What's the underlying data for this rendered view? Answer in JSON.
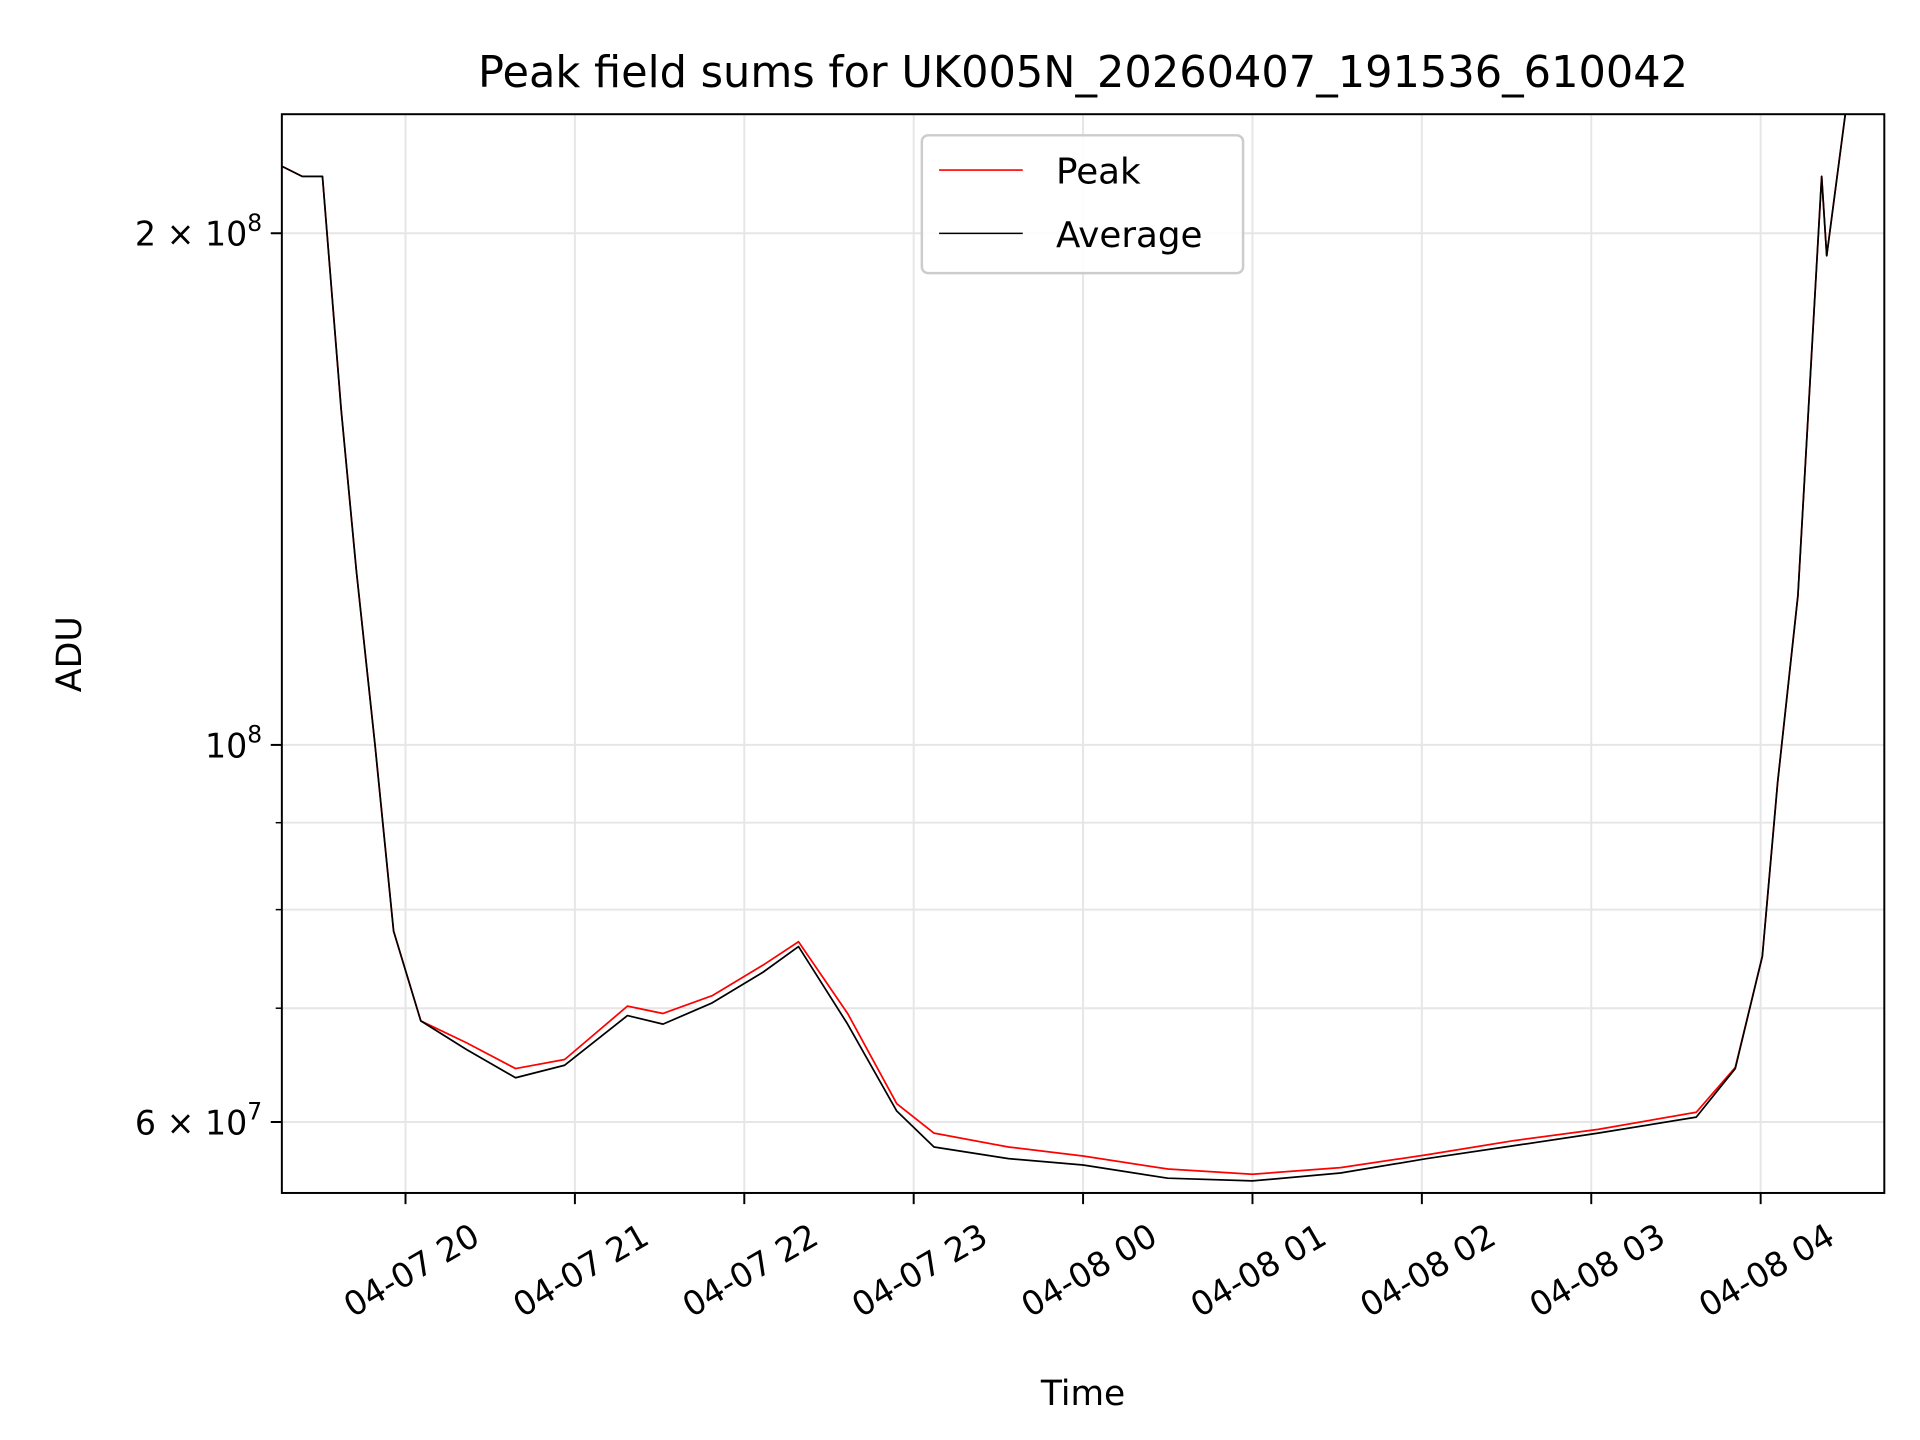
{
  "chart_data": {
    "type": "line",
    "title": "Peak field sums for UK005N_20260407_191536_610042",
    "xlabel": "Time",
    "ylabel": "ADU",
    "yscale": "log",
    "ylim": [
      54500000,
      235000000
    ],
    "xlim_hours": [
      19.27,
      28.73
    ],
    "x_unit": "hours since 2026-04-07 00:00",
    "grid": true,
    "legend_placement": "upper-center",
    "x_ticks": [
      {
        "t": 20,
        "label": "04-07 20"
      },
      {
        "t": 21,
        "label": "04-07 21"
      },
      {
        "t": 22,
        "label": "04-07 22"
      },
      {
        "t": 23,
        "label": "04-07 23"
      },
      {
        "t": 24,
        "label": "04-08 00"
      },
      {
        "t": 25,
        "label": "04-08 01"
      },
      {
        "t": 26,
        "label": "04-08 02"
      },
      {
        "t": 27,
        "label": "04-08 03"
      },
      {
        "t": 28,
        "label": "04-08 04"
      }
    ],
    "y_major_ticks": [
      {
        "v": 200000000,
        "base": "2 × 10",
        "exp": "8"
      },
      {
        "v": 100000000,
        "base": "10",
        "exp": "8"
      },
      {
        "v": 60000000,
        "base": "6 × 10",
        "exp": "7"
      }
    ],
    "y_minor_ticks": [
      70000000,
      80000000,
      90000000
    ],
    "series": [
      {
        "name": "Peak",
        "color": "#ff0000",
        "x": [
          19.27,
          19.39,
          19.51,
          19.62,
          19.71,
          19.82,
          19.93,
          20.09,
          20.36,
          20.65,
          20.94,
          21.31,
          21.52,
          21.81,
          22.11,
          22.32,
          22.61,
          22.9,
          23.12,
          23.56,
          24.0,
          24.5,
          25.0,
          25.52,
          26.03,
          26.54,
          27.04,
          27.62,
          27.85,
          28.01,
          28.1,
          28.22,
          28.36,
          28.39,
          28.5,
          28.73
        ],
        "y": [
          219000000,
          216000000,
          216000000,
          157500000,
          126500000,
          100000000,
          77700000,
          68800000,
          66800000,
          64500000,
          65300000,
          70200000,
          69500000,
          71200000,
          74200000,
          76600000,
          69500000,
          61500000,
          59100000,
          58000000,
          57300000,
          56300000,
          55900000,
          56400000,
          57400000,
          58500000,
          59400000,
          60800000,
          64600000,
          75100000,
          95000000,
          122400000,
          216000000,
          194000000,
          235000000,
          240000000
        ]
      },
      {
        "name": "Average",
        "color": "#000000",
        "x": [
          19.27,
          19.39,
          19.51,
          19.62,
          19.71,
          19.82,
          19.93,
          20.09,
          20.36,
          20.65,
          20.94,
          21.31,
          21.52,
          21.81,
          22.11,
          22.32,
          22.61,
          22.9,
          23.12,
          23.56,
          24.0,
          24.5,
          25.0,
          25.52,
          26.03,
          26.54,
          27.04,
          27.62,
          27.85,
          28.01,
          28.1,
          28.22,
          28.36,
          28.39,
          28.5,
          28.73
        ],
        "y": [
          219000000,
          216000000,
          216000000,
          157500000,
          126500000,
          100000000,
          77700000,
          68800000,
          66200000,
          63700000,
          64800000,
          69300000,
          68500000,
          70500000,
          73500000,
          76100000,
          68500000,
          60900000,
          58000000,
          57100000,
          56600000,
          55600000,
          55400000,
          56000000,
          57100000,
          58100000,
          59100000,
          60400000,
          64500000,
          75100000,
          95000000,
          122400000,
          216000000,
          194000000,
          235000000,
          240000000
        ]
      }
    ]
  }
}
